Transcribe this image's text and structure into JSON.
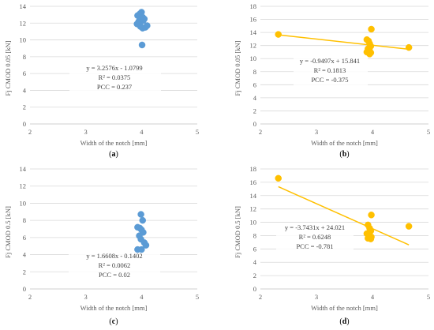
{
  "chart_data": [
    {
      "type": "scatter",
      "panel_label": "(a)",
      "xlabel": "Width of the notch [mm]",
      "ylabel": "Fj CMOD 0.05 [kN]",
      "xlim": [
        2,
        5
      ],
      "ylim": [
        0,
        14
      ],
      "xticks": [
        "2",
        "3",
        "4",
        "5"
      ],
      "yticks": [
        "0",
        "2",
        "4",
        "6",
        "8",
        "10",
        "12",
        "14"
      ],
      "grid": "horizontal",
      "marker_color": "#5b9bd5",
      "trendline": false,
      "annotation": [
        "y = 3.2576x - 1.0799",
        "R² = 0.0375",
        "PCC = 0.237"
      ],
      "series": [
        {
          "x": [
            3.93,
            3.97,
            4.0,
            4.02,
            4.03,
            4.05,
            3.95,
            3.98,
            4.02,
            4.07,
            4.1,
            3.92,
            3.97,
            4.01
          ],
          "y": [
            12.9,
            13.1,
            13.3,
            12.7,
            12.3,
            12.5,
            12.2,
            11.6,
            11.4,
            11.5,
            11.7,
            11.9,
            11.8,
            9.4
          ]
        }
      ]
    },
    {
      "type": "scatter",
      "panel_label": "(b)",
      "xlabel": "Width of the notch [mm]",
      "ylabel": "Fj CMOD 0.05 [kN]",
      "xlim": [
        2,
        5
      ],
      "ylim": [
        0,
        18
      ],
      "xticks": [
        "2",
        "3",
        "4",
        "5"
      ],
      "yticks": [
        "0",
        "2",
        "4",
        "6",
        "8",
        "10",
        "12",
        "14",
        "16",
        "18"
      ],
      "grid": "horizontal",
      "marker_color": "#ffc000",
      "trendline": true,
      "trendline_color": "#ffc000",
      "trend_range": [
        2.32,
        4.65
      ],
      "slope": -0.9497,
      "intercept": 15.841,
      "annotation": [
        "y = -0.9497x + 15.841",
        "R² = 0.1813",
        "PCC = -0.375"
      ],
      "series": [
        {
          "x": [
            2.32,
            3.9,
            3.93,
            3.95,
            3.97,
            3.98,
            3.92,
            3.95,
            3.97,
            3.9,
            3.95,
            4.65
          ],
          "y": [
            13.7,
            12.9,
            12.7,
            12.3,
            11.9,
            14.5,
            11.5,
            11.2,
            10.9,
            11.0,
            10.7,
            11.7
          ]
        }
      ]
    },
    {
      "type": "scatter",
      "panel_label": "(c)",
      "xlabel": "Width of the notch [mm]",
      "ylabel": "Fj CMOD 0.5 [kN]",
      "xlim": [
        2,
        5
      ],
      "ylim": [
        0,
        14
      ],
      "xticks": [
        "2",
        "3",
        "4",
        "5"
      ],
      "yticks": [
        "0",
        "2",
        "4",
        "6",
        "8",
        "10",
        "12",
        "14"
      ],
      "grid": "horizontal",
      "marker_color": "#5b9bd5",
      "trendline": false,
      "annotation": [
        "y = 1.6608x - 0.1402",
        "R² = 0.0062",
        "PCC = 0.02"
      ],
      "series": [
        {
          "x": [
            3.99,
            4.02,
            3.93,
            3.97,
            4.0,
            4.03,
            3.96,
            3.99,
            4.05,
            4.08,
            3.93,
            4.0
          ],
          "y": [
            8.7,
            8.0,
            7.2,
            7.1,
            6.9,
            6.6,
            6.2,
            5.8,
            5.4,
            5.1,
            4.6,
            4.6
          ]
        }
      ]
    },
    {
      "type": "scatter",
      "panel_label": "(d)",
      "xlabel": "Width of the notch [mm]",
      "ylabel": "Fj CMOD 0.5 [kN]",
      "xlim": [
        2,
        5
      ],
      "ylim": [
        0,
        18
      ],
      "xticks": [
        "2",
        "3",
        "4",
        "5"
      ],
      "yticks": [
        "0",
        "2",
        "4",
        "6",
        "8",
        "10",
        "12",
        "14",
        "16",
        "18"
      ],
      "grid": "horizontal",
      "marker_color": "#ffc000",
      "trendline": true,
      "trendline_color": "#ffc000",
      "trend_range": [
        2.32,
        4.65
      ],
      "slope": -3.7431,
      "intercept": 24.021,
      "annotation": [
        "y = -3.7431x + 24.021",
        "R² = 0.6248",
        "PCC = -0.781"
      ],
      "series": [
        {
          "x": [
            2.32,
            3.98,
            3.92,
            3.95,
            3.97,
            3.9,
            3.95,
            3.98,
            3.92,
            3.97,
            4.65
          ],
          "y": [
            16.6,
            11.1,
            9.6,
            9.1,
            8.7,
            8.3,
            8.0,
            7.8,
            7.6,
            7.5,
            9.4
          ]
        }
      ]
    }
  ]
}
